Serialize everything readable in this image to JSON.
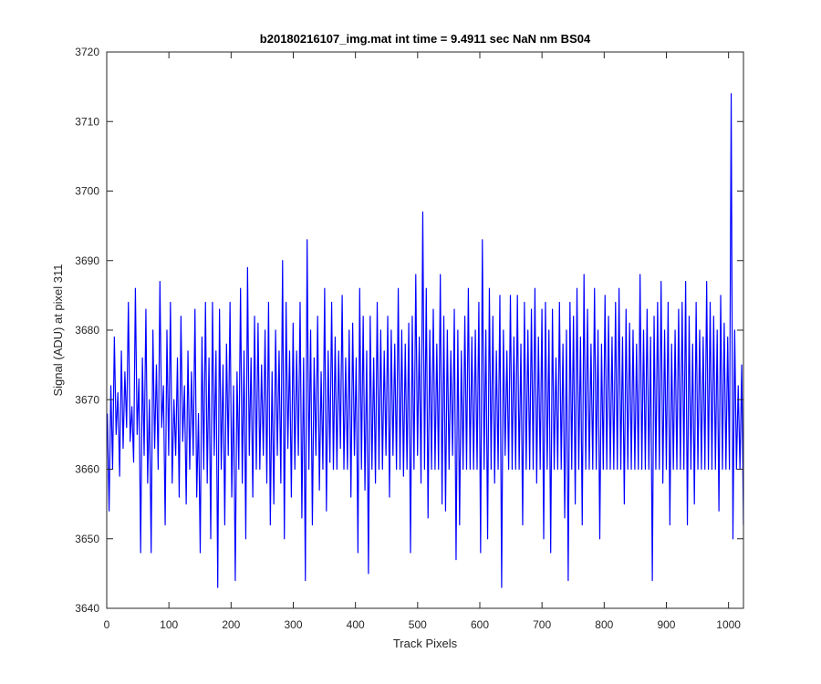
{
  "chart_data": {
    "type": "line",
    "title": "b20180216107_img.mat int time = 9.4911 sec  NaN nm BS04",
    "xlabel": "Track Pixels",
    "ylabel": "Signal (ADU) at pixel 311",
    "xlim": [
      0,
      1024
    ],
    "ylim": [
      3640,
      3720
    ],
    "xticks": [
      0,
      100,
      200,
      300,
      400,
      500,
      600,
      700,
      800,
      900,
      1000
    ],
    "yticks": [
      3640,
      3650,
      3660,
      3670,
      3680,
      3690,
      3700,
      3710,
      3720
    ],
    "grid": false,
    "legend": "none",
    "series": [
      {
        "color": "#0000ff",
        "x_start": 1,
        "x_step": 1,
        "values": [
          3668,
          3654,
          3672,
          3660,
          3679,
          3665,
          3671,
          3659,
          3677,
          3663,
          3674,
          3666,
          3684,
          3664,
          3669,
          3661,
          3686,
          3665,
          3673,
          3648,
          3676,
          3662,
          3683,
          3658,
          3670,
          3648,
          3680,
          3663,
          3675,
          3660,
          3687,
          3666,
          3672,
          3652,
          3680,
          3662,
          3684,
          3658,
          3670,
          3662,
          3676,
          3656,
          3682,
          3664,
          3672,
          3655,
          3677,
          3660,
          3674,
          3662,
          3683,
          3656,
          3668,
          3648,
          3679,
          3660,
          3684,
          3658,
          3676,
          3650,
          3684,
          3662,
          3677,
          3643,
          3683,
          3660,
          3675,
          3652,
          3678,
          3662,
          3684,
          3656,
          3672,
          3644,
          3674,
          3660,
          3686,
          3658,
          3677,
          3650,
          3689,
          3662,
          3676,
          3656,
          3682,
          3660,
          3681,
          3660,
          3675,
          3662,
          3680,
          3658,
          3684,
          3652,
          3674,
          3655,
          3680,
          3662,
          3677,
          3658,
          3690,
          3650,
          3684,
          3663,
          3677,
          3656,
          3681,
          3660,
          3677,
          3662,
          3684,
          3653,
          3676,
          3644,
          3693,
          3660,
          3680,
          3652,
          3676,
          3662,
          3682,
          3657,
          3674,
          3660,
          3686,
          3654,
          3677,
          3661,
          3684,
          3660,
          3679,
          3660,
          3677,
          3663,
          3685,
          3660,
          3676,
          3660,
          3680,
          3656,
          3681,
          3662,
          3676,
          3648,
          3686,
          3660,
          3682,
          3657,
          3677,
          3645,
          3682,
          3660,
          3676,
          3658,
          3684,
          3660,
          3680,
          3660,
          3677,
          3662,
          3682,
          3656,
          3680,
          3662,
          3678,
          3660,
          3686,
          3660,
          3680,
          3659,
          3678,
          3660,
          3681,
          3648,
          3682,
          3660,
          3688,
          3662,
          3679,
          3658,
          3697,
          3660,
          3686,
          3653,
          3680,
          3660,
          3683,
          3660,
          3678,
          3660,
          3688,
          3655,
          3682,
          3654,
          3680,
          3660,
          3677,
          3662,
          3683,
          3647,
          3680,
          3652,
          3677,
          3660,
          3682,
          3660,
          3686,
          3660,
          3679,
          3660,
          3680,
          3660,
          3684,
          3648,
          3693,
          3660,
          3680,
          3650,
          3686,
          3660,
          3682,
          3658,
          3677,
          3660,
          3685,
          3643,
          3680,
          3662,
          3677,
          3660,
          3685,
          3660,
          3679,
          3660,
          3685,
          3660,
          3678,
          3652,
          3684,
          3660,
          3680,
          3660,
          3683,
          3660,
          3686,
          3658,
          3679,
          3660,
          3683,
          3650,
          3684,
          3660,
          3680,
          3648,
          3683,
          3660,
          3676,
          3660,
          3684,
          3660,
          3678,
          3653,
          3680,
          3644,
          3684,
          3660,
          3682,
          3655,
          3686,
          3660,
          3679,
          3652,
          3688,
          3660,
          3683,
          3660,
          3678,
          3660,
          3686,
          3660,
          3680,
          3650,
          3678,
          3660,
          3685,
          3660,
          3682,
          3660,
          3679,
          3660,
          3684,
          3660,
          3686,
          3660,
          3679,
          3655,
          3683,
          3660,
          3681,
          3660,
          3680,
          3660,
          3678,
          3660,
          3688,
          3660,
          3680,
          3660,
          3683,
          3660,
          3679,
          3644,
          3682,
          3660,
          3684,
          3660,
          3687,
          3658,
          3680,
          3660,
          3684,
          3652,
          3678,
          3660,
          3680,
          3660,
          3683,
          3660,
          3684,
          3660,
          3687,
          3652,
          3682,
          3660,
          3678,
          3655,
          3684,
          3660,
          3680,
          3660,
          3679,
          3660,
          3687,
          3660,
          3684,
          3660,
          3682,
          3660,
          3680,
          3654,
          3685,
          3660,
          3681,
          3660,
          3679,
          3660,
          3714,
          3650,
          3680,
          3660,
          3672,
          3660,
          3675,
          3652
        ]
      }
    ]
  }
}
